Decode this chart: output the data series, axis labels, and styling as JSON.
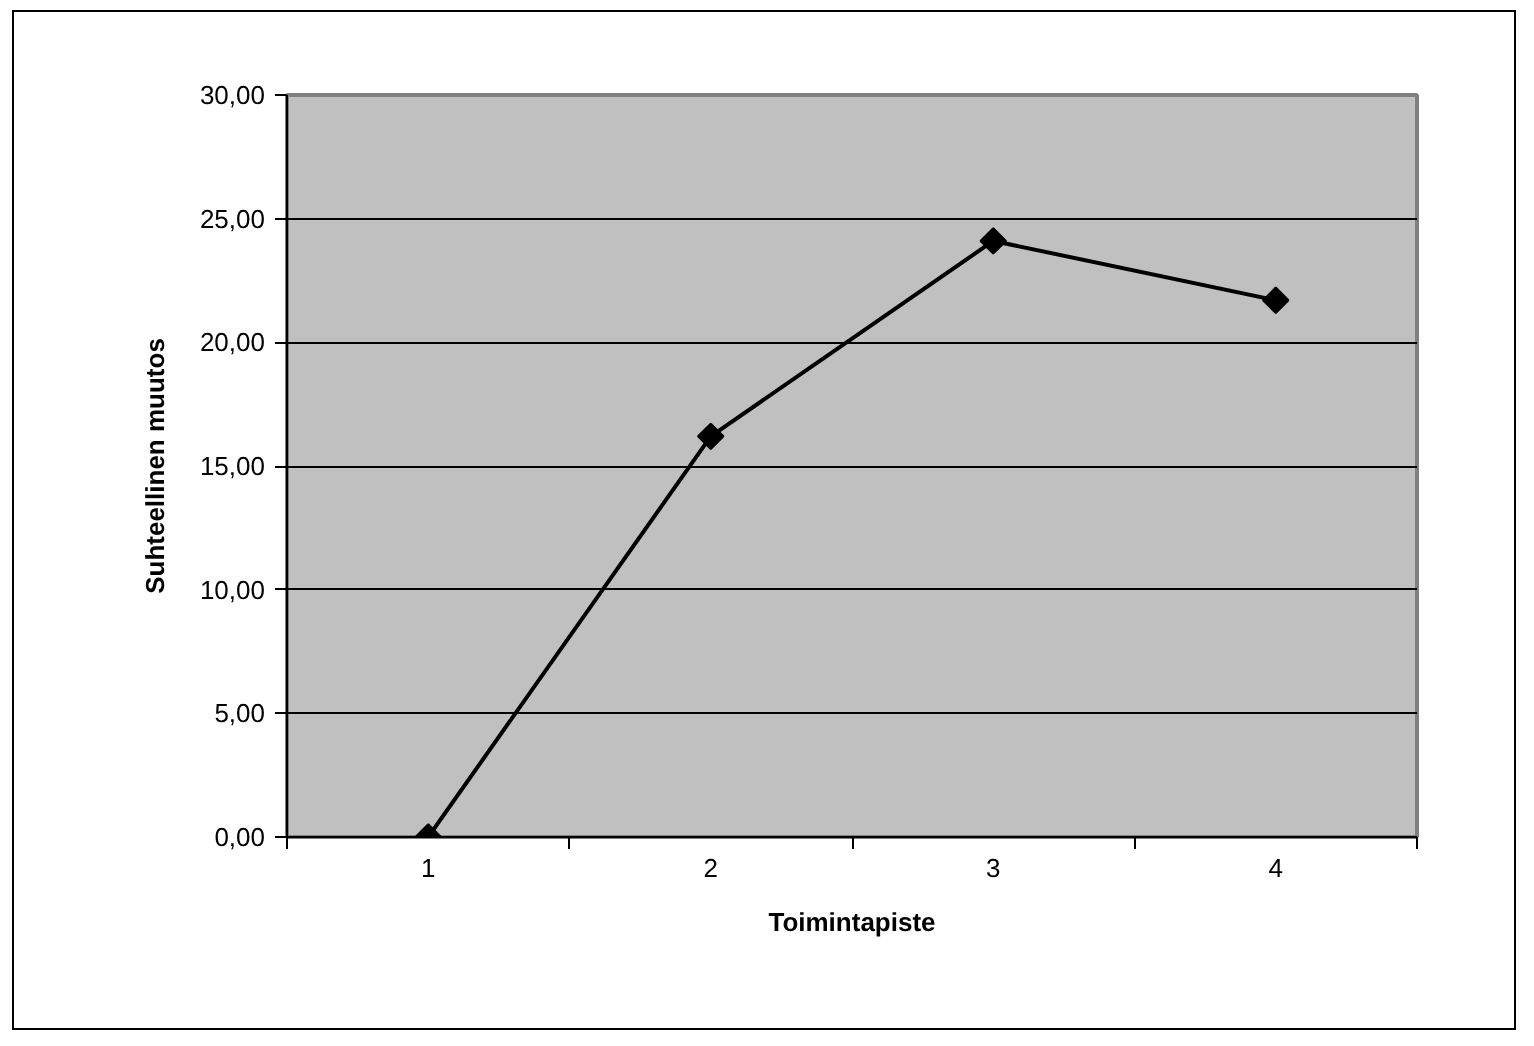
{
  "chart_data": {
    "type": "line",
    "xlabel": "Toimintapiste",
    "ylabel": "Suhteellinen muutos",
    "categories": [
      "1",
      "2",
      "3",
      "4"
    ],
    "series": [
      {
        "color": "#000000",
        "values": [
          0,
          16.2,
          24.1,
          21.7
        ]
      }
    ],
    "ylim": [
      0,
      30
    ],
    "yticks": [
      {
        "value": 0,
        "label": "0,00"
      },
      {
        "value": 5,
        "label": "5,00"
      },
      {
        "value": 10,
        "label": "10,00"
      },
      {
        "value": 15,
        "label": "15,00"
      },
      {
        "value": 20,
        "label": "20,00"
      },
      {
        "value": 25,
        "label": "25,00"
      },
      {
        "value": 30,
        "label": "30,00"
      }
    ],
    "grid": "y",
    "marker": "diamond",
    "line_style": "solid"
  }
}
